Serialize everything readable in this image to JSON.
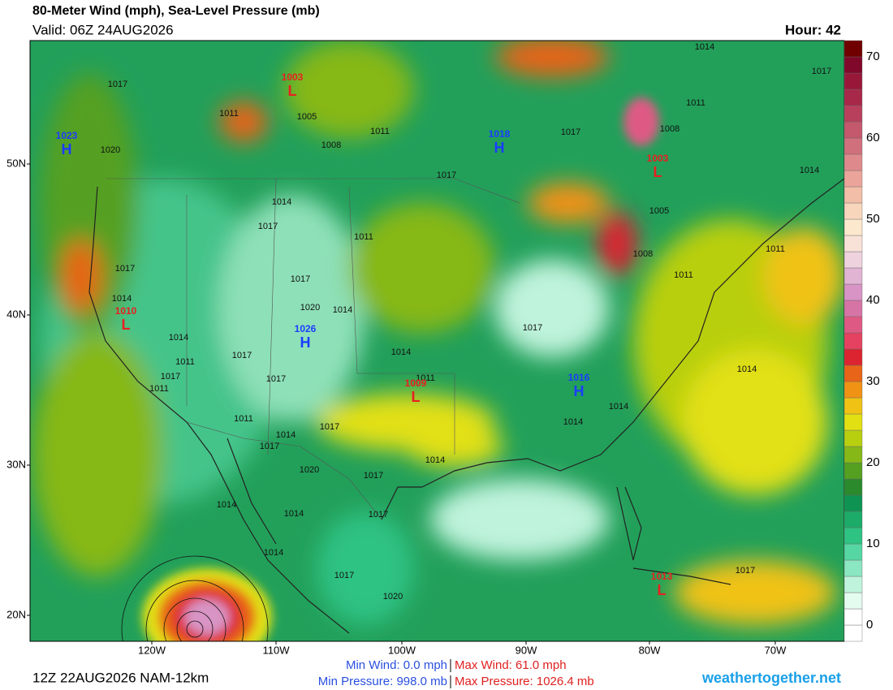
{
  "header": {
    "title": "80-Meter Wind (mph), Sea-Level Pressure (mb)",
    "valid": "Valid: 06Z 24AUG2026",
    "hour": "Hour: 42"
  },
  "axes": {
    "lat_labels": [
      "50N",
      "40N",
      "30N",
      "20N"
    ],
    "lon_labels": [
      "120W",
      "110W",
      "100W",
      "90W",
      "80W",
      "70W"
    ]
  },
  "colorbar": {
    "ticks": [
      0,
      10,
      20,
      30,
      40,
      50,
      60,
      70
    ],
    "colors": [
      "#ffffff",
      "#ffffff",
      "#e4fbf0",
      "#bff3dc",
      "#8be6c2",
      "#55d6a2",
      "#2ec283",
      "#1cab68",
      "#0f9352",
      "#2a8a2c",
      "#55a020",
      "#86b818",
      "#b8cf10",
      "#e2e012",
      "#f0c214",
      "#f09214",
      "#e86418",
      "#dc2430",
      "#e44260",
      "#de5a84",
      "#d674a6",
      "#d894c4",
      "#e2b4d4",
      "#eed2de",
      "#f8e2d8",
      "#fce8cc",
      "#f8d6bc",
      "#f2bea8",
      "#eaa49a",
      "#de8a8c",
      "#d0707c",
      "#c4586c",
      "#b8405c",
      "#a8284a",
      "#98183a",
      "#80082a",
      "#700000"
    ]
  },
  "pressure_centers": [
    {
      "kind": "L",
      "value": "1003"
    },
    {
      "kind": "H",
      "value": "1023"
    },
    {
      "kind": "H",
      "value": "1018"
    },
    {
      "kind": "L",
      "value": "1003"
    },
    {
      "kind": "L",
      "value": "1010"
    },
    {
      "kind": "H",
      "value": "1026"
    },
    {
      "kind": "L",
      "value": "1009"
    },
    {
      "kind": "H",
      "value": "1016"
    },
    {
      "kind": "L",
      "value": "1013"
    }
  ],
  "isobar_labels": [
    "1017",
    "1011",
    "1005",
    "1008",
    "1011",
    "1017",
    "1017",
    "1014",
    "1017",
    "1011",
    "1008",
    "1014",
    "1005",
    "1020",
    "1014",
    "1017",
    "1011",
    "1017",
    "1014",
    "1017",
    "1020",
    "1014",
    "1008",
    "1011",
    "1011",
    "1014",
    "1011",
    "1017",
    "1011",
    "1017",
    "1017",
    "1014",
    "1011",
    "1017",
    "1014",
    "1014",
    "1014",
    "1011",
    "1017",
    "1014",
    "1017",
    "1020",
    "1017",
    "1014",
    "1014",
    "1014",
    "1017",
    "1014",
    "1017",
    "1020",
    "1017"
  ],
  "footer": {
    "run": "12Z 22AUG2026 NAM-12km",
    "min_wind": "Min Wind:   0.0 mph",
    "max_wind": "Max Wind:  61.0 mph",
    "min_pressure": "Min Pressure: 998.0 mb",
    "max_pressure": "Max Pressure: 1026.4 mb",
    "site": "weathertogether.net"
  }
}
